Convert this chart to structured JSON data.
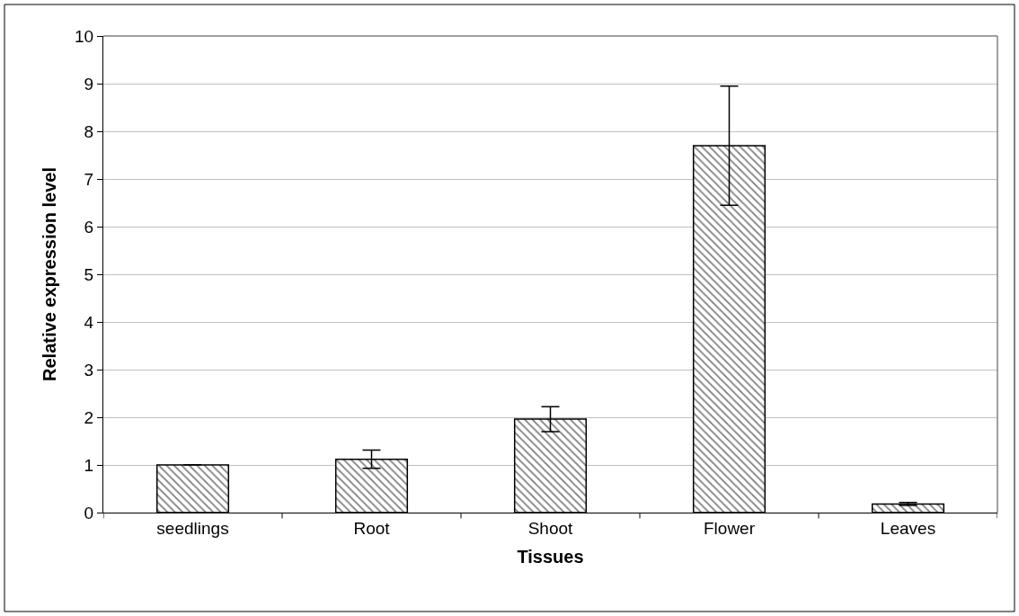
{
  "chart_data": {
    "type": "bar",
    "xlabel": "Tissues",
    "ylabel": "Relative expression level",
    "categories": [
      "seedlings",
      "Root",
      "Shoot",
      "Flower",
      "Leaves"
    ],
    "values": [
      1.0,
      1.12,
      1.96,
      7.7,
      0.18
    ],
    "errors": [
      null,
      0.19,
      0.26,
      1.25,
      0.03
    ],
    "color": "#000000",
    "ylim": [
      0,
      10
    ],
    "yticks": [
      0,
      1,
      2,
      3,
      4,
      5,
      6,
      7,
      8,
      9,
      10
    ],
    "grid": "y"
  }
}
